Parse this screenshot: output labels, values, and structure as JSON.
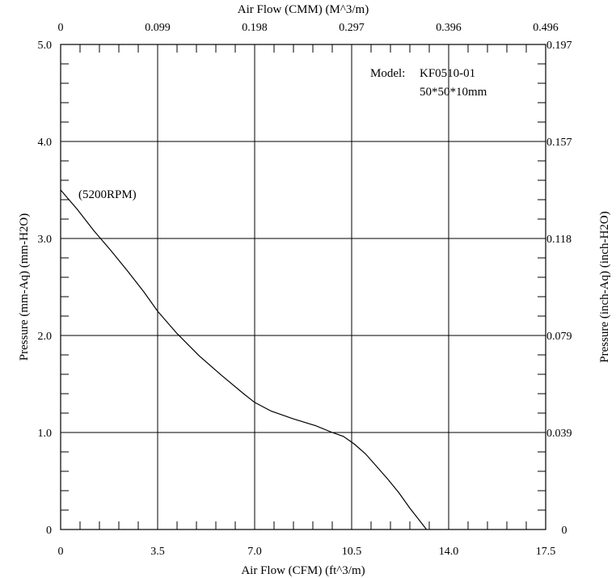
{
  "chart_data": {
    "type": "line",
    "top_xlabel": "Air Flow (CMM) (M^3/m)",
    "xlabel": "Air Flow (CFM) (ft^3/m)",
    "ylabel": "Pressure (mm-Aq) (mm-H2O)",
    "right_ylabel": "Pressure (inch-Aq) (inch-H2O)",
    "xlim": [
      0,
      17.5
    ],
    "ylim": [
      0,
      5.0
    ],
    "x_ticks": [
      "0",
      "3.5",
      "7.0",
      "10.5",
      "14.0",
      "17.5"
    ],
    "top_ticks": [
      "0",
      "0.099",
      "0.198",
      "0.297",
      "0.396",
      "0.496"
    ],
    "y_ticks": [
      "0",
      "1.0",
      "2.0",
      "3.0",
      "4.0",
      "5.0"
    ],
    "right_ticks": [
      "0",
      "0.039",
      "0.079",
      "0.118",
      "0.157",
      "0.197"
    ],
    "grid": true,
    "annotations": {
      "model_label": "Model:",
      "model_value": "KF0510-01",
      "size": "50*50*10mm",
      "rpm": "(5200RPM)"
    },
    "series": [
      {
        "x": [
          0,
          0.6,
          1.2,
          1.8,
          2.4,
          3.0,
          3.5,
          4.2,
          5.0,
          5.8,
          6.6,
          7.0,
          7.6,
          8.4,
          9.2,
          9.8,
          10.2,
          10.6,
          11.0,
          11.4,
          11.8,
          12.2,
          12.6,
          12.9,
          13.2
        ],
        "y": [
          3.5,
          3.3,
          3.08,
          2.88,
          2.67,
          2.45,
          2.25,
          2.02,
          1.79,
          1.59,
          1.4,
          1.31,
          1.22,
          1.14,
          1.07,
          1.0,
          0.96,
          0.88,
          0.78,
          0.65,
          0.52,
          0.38,
          0.22,
          0.11,
          0.0
        ]
      }
    ]
  }
}
